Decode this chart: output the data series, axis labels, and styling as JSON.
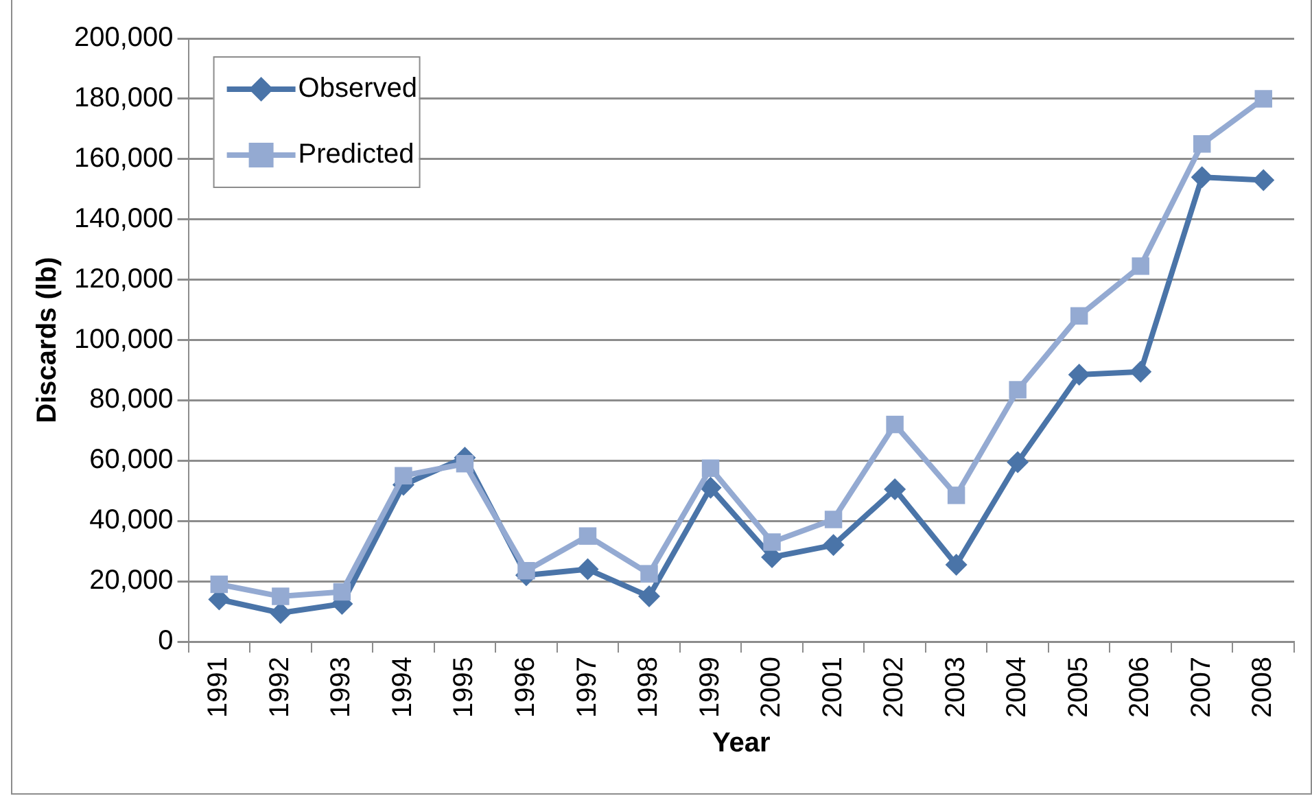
{
  "chart_data": {
    "type": "line",
    "xlabel": "Year",
    "ylabel": "Discards (lb)",
    "categories": [
      "1991",
      "1992",
      "1993",
      "1994",
      "1995",
      "1996",
      "1997",
      "1998",
      "1999",
      "2000",
      "2001",
      "2002",
      "2003",
      "2004",
      "2005",
      "2006",
      "2007",
      "2008"
    ],
    "series": [
      {
        "name": "Observed",
        "color": "#4a74a8",
        "marker": "diamond",
        "values": [
          14000,
          9500,
          12500,
          52000,
          61000,
          22000,
          24000,
          15000,
          51000,
          28000,
          32000,
          50500,
          25500,
          59500,
          88500,
          89500,
          154000,
          153000
        ]
      },
      {
        "name": "Predicted",
        "color": "#94aad2",
        "marker": "square",
        "values": [
          19000,
          15000,
          16500,
          55000,
          59000,
          23500,
          35000,
          22500,
          57500,
          33000,
          40500,
          72000,
          48500,
          83500,
          108000,
          124500,
          165000,
          180000
        ]
      }
    ],
    "ylim": [
      0,
      200000
    ],
    "yticks": [
      0,
      {
        "value": 20000,
        "label": "20,000"
      },
      {
        "value": 40000,
        "label": "40,000"
      },
      {
        "value": 60000,
        "label": "60,000"
      },
      {
        "value": 80000,
        "label": "80,000"
      },
      {
        "value": 100000,
        "label": "100,000"
      },
      {
        "value": 120000,
        "label": "120,000"
      },
      {
        "value": 140000,
        "label": "140,000"
      },
      {
        "value": 160000,
        "label": "160,000"
      },
      {
        "value": 180000,
        "label": "180,000"
      },
      {
        "value": 200000,
        "label": "200,000"
      }
    ],
    "grid": "y",
    "legend": "top left",
    "line_style": "solid"
  }
}
